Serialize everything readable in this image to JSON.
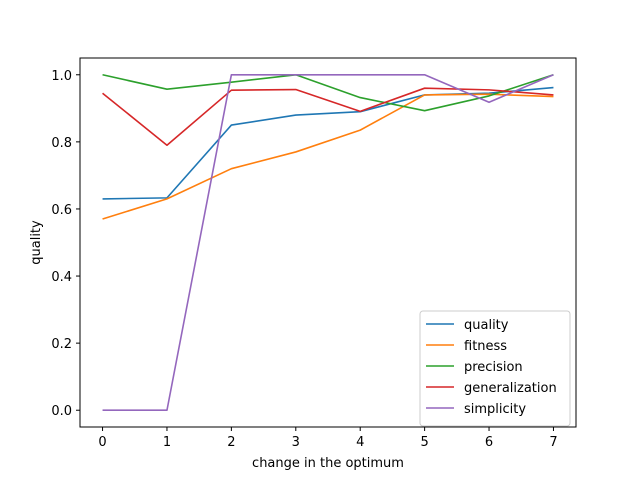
{
  "chart_data": {
    "type": "line",
    "title": "",
    "xlabel": "change in the optimum",
    "ylabel": "quality",
    "x": [
      0,
      1,
      2,
      3,
      4,
      5,
      6,
      7
    ],
    "xlim": [
      -0.35,
      7.35
    ],
    "ylim": [
      -0.05,
      1.05
    ],
    "xticks": [
      0,
      1,
      2,
      3,
      4,
      5,
      6,
      7
    ],
    "yticks": [
      0.0,
      0.2,
      0.4,
      0.6,
      0.8,
      1.0
    ],
    "ytick_labels": [
      "0.0",
      "0.2",
      "0.4",
      "0.6",
      "0.8",
      "1.0"
    ],
    "grid": false,
    "legend_position": "lower-right",
    "series": [
      {
        "name": "quality",
        "color": "#1f77b4",
        "values": [
          0.63,
          0.633,
          0.85,
          0.88,
          0.89,
          0.94,
          0.945,
          0.962
        ]
      },
      {
        "name": "fitness",
        "color": "#ff7f0e",
        "values": [
          0.57,
          0.63,
          0.72,
          0.77,
          0.835,
          0.94,
          0.942,
          0.935
        ]
      },
      {
        "name": "precision",
        "color": "#2ca02c",
        "values": [
          1.0,
          0.957,
          0.978,
          1.0,
          0.932,
          0.893,
          0.937,
          1.0
        ]
      },
      {
        "name": "generalization",
        "color": "#d62728",
        "values": [
          0.945,
          0.79,
          0.954,
          0.956,
          0.891,
          0.96,
          0.955,
          0.94
        ]
      },
      {
        "name": "simplicity",
        "color": "#9467bd",
        "values": [
          0.0,
          0.0,
          1.0,
          1.0,
          1.0,
          1.0,
          0.918,
          1.0
        ]
      }
    ]
  }
}
